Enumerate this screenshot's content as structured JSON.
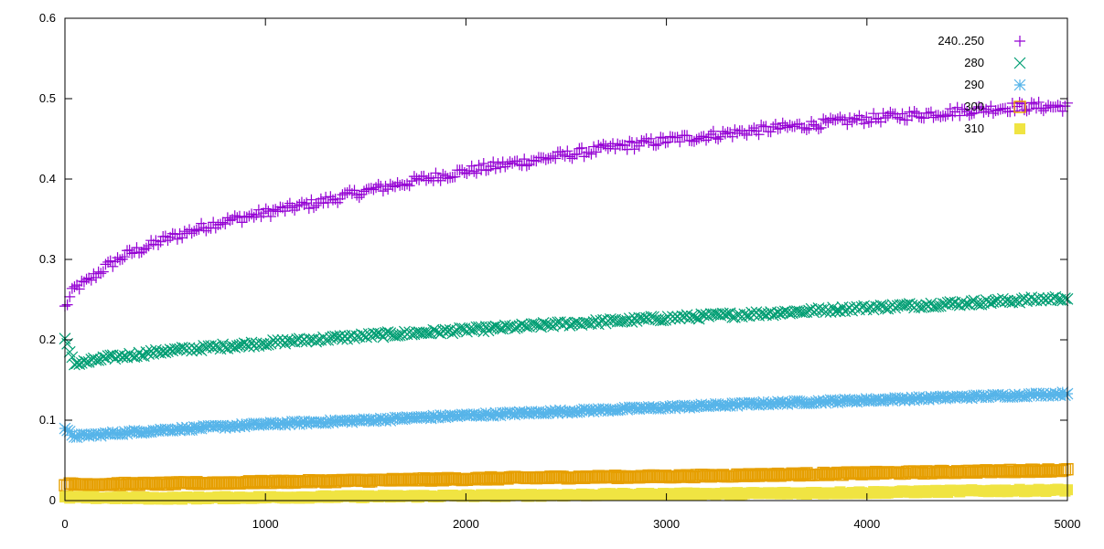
{
  "chart_data": {
    "type": "scatter",
    "title": "",
    "xlabel": "",
    "ylabel": "",
    "xlim": [
      0,
      5000
    ],
    "ylim": [
      0,
      0.6
    ],
    "xticks": [
      "0",
      "1000",
      "2000",
      "3000",
      "4000",
      "5000"
    ],
    "yticks": [
      "0",
      "0.1",
      "0.2",
      "0.3",
      "0.4",
      "0.5",
      "0.6"
    ],
    "grid": false,
    "legend_position": "top-right",
    "series": [
      {
        "name": "240..250",
        "color": "#9400d3",
        "marker": "plus-icon",
        "x": [
          0,
          50,
          100,
          200,
          300,
          500,
          750,
          1000,
          1250,
          1500,
          1750,
          2000,
          2250,
          2500,
          2750,
          3000,
          3250,
          3500,
          3750,
          4000,
          4250,
          4500,
          4750,
          5000
        ],
        "y": [
          0.24,
          0.265,
          0.27,
          0.29,
          0.305,
          0.325,
          0.345,
          0.358,
          0.37,
          0.385,
          0.398,
          0.41,
          0.42,
          0.43,
          0.44,
          0.448,
          0.455,
          0.462,
          0.468,
          0.475,
          0.48,
          0.485,
          0.49,
          0.49
        ]
      },
      {
        "name": "280",
        "color": "#009e73",
        "marker": "cross-icon",
        "x": [
          0,
          50,
          100,
          200,
          500,
          1000,
          1500,
          2000,
          2500,
          3000,
          3500,
          4000,
          4500,
          5000
        ],
        "y": [
          0.2,
          0.17,
          0.172,
          0.177,
          0.186,
          0.196,
          0.205,
          0.212,
          0.22,
          0.227,
          0.233,
          0.24,
          0.246,
          0.252
        ]
      },
      {
        "name": "290",
        "color": "#56b4e9",
        "marker": "asterisk-icon",
        "x": [
          0,
          50,
          100,
          500,
          1000,
          1500,
          2000,
          2500,
          3000,
          3500,
          4000,
          4500,
          5000
        ],
        "y": [
          0.088,
          0.08,
          0.081,
          0.088,
          0.095,
          0.1,
          0.106,
          0.111,
          0.116,
          0.121,
          0.125,
          0.129,
          0.133
        ]
      },
      {
        "name": "300",
        "color": "#e69f00",
        "marker": "open-square-icon",
        "x": [
          0,
          500,
          1000,
          1500,
          2000,
          2500,
          3000,
          3500,
          4000,
          4500,
          5000
        ],
        "y": [
          0.02,
          0.021,
          0.023,
          0.025,
          0.027,
          0.029,
          0.03,
          0.032,
          0.034,
          0.036,
          0.038
        ]
      },
      {
        "name": "310",
        "color": "#f0e442",
        "marker": "filled-square-icon",
        "x": [
          0,
          500,
          1000,
          1500,
          2000,
          2500,
          3000,
          3500,
          4000,
          4500,
          5000
        ],
        "y": [
          0.004,
          0.003,
          0.004,
          0.005,
          0.006,
          0.007,
          0.008,
          0.009,
          0.01,
          0.012,
          0.013
        ]
      }
    ]
  }
}
